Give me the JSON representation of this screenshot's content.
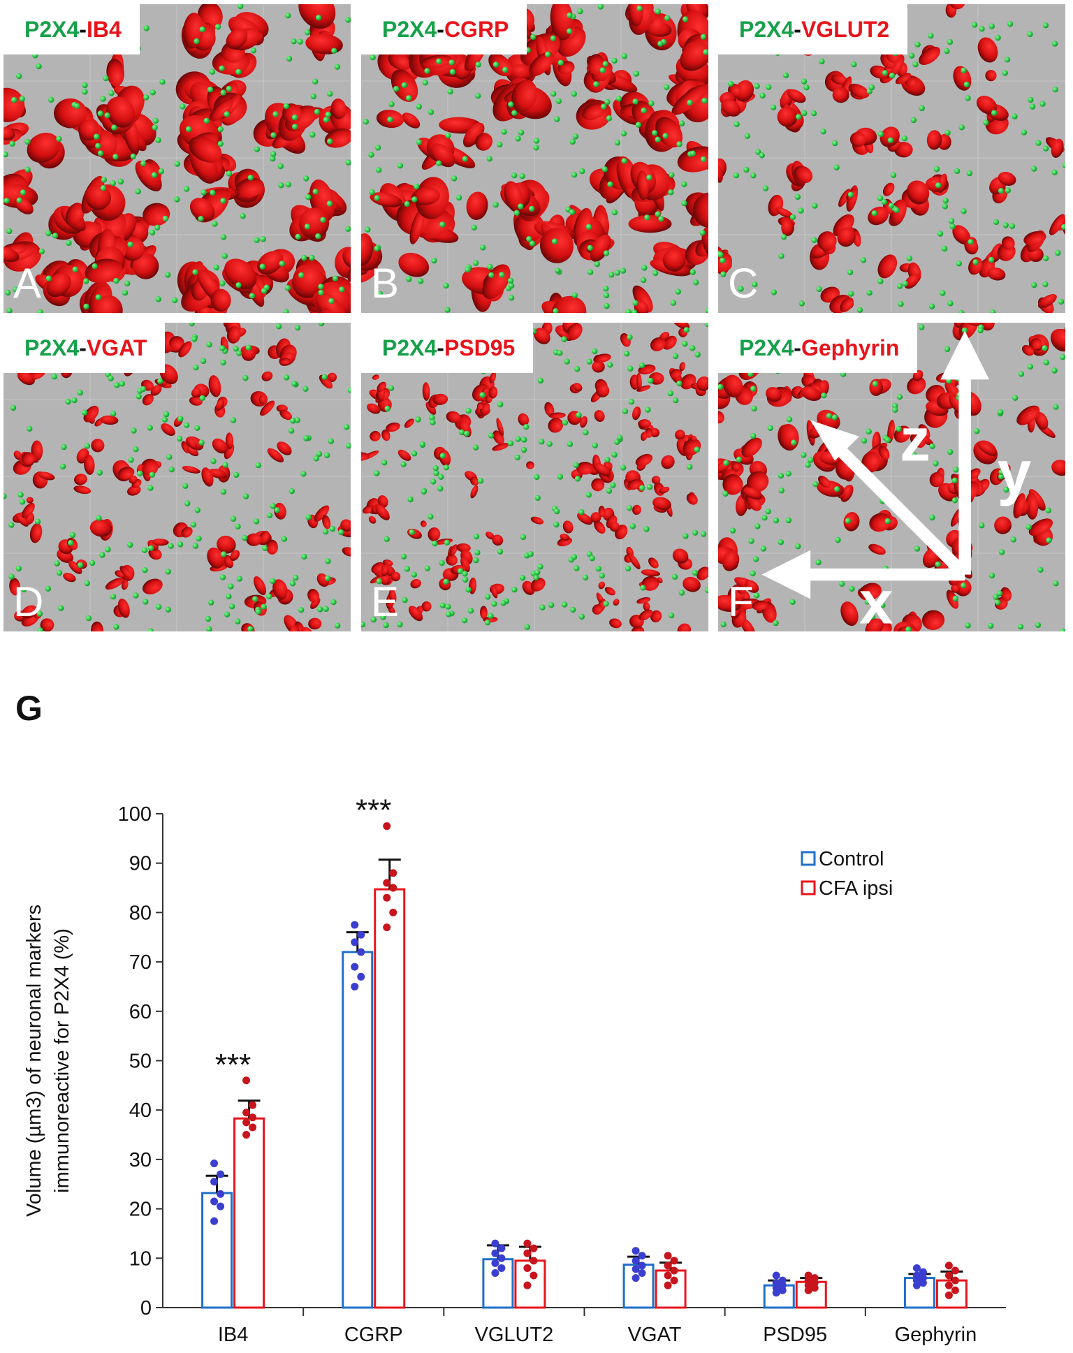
{
  "panels": [
    {
      "letter": "A",
      "marker_green": "P2X4",
      "dash": "-",
      "marker_red": "IB4"
    },
    {
      "letter": "B",
      "marker_green": "P2X4",
      "dash": "-",
      "marker_red": "CGRP"
    },
    {
      "letter": "C",
      "marker_green": "P2X4",
      "dash": "-",
      "marker_red": "VGLUT2"
    },
    {
      "letter": "D",
      "marker_green": "P2X4",
      "dash": "-",
      "marker_red": "VGAT"
    },
    {
      "letter": "E",
      "marker_green": "P2X4",
      "dash": "-",
      "marker_red": "PSD95"
    },
    {
      "letter": "F",
      "marker_green": "P2X4",
      "dash": "-",
      "marker_red": "Gephyrin"
    }
  ],
  "axis_indicator": {
    "x": "x",
    "y": "y",
    "z": "z"
  },
  "colors": {
    "green": "#16a04a",
    "red": "#e8141b",
    "control": "#1f6fc9",
    "cfa": "#e8141b",
    "control_dots": "#3b3fd0",
    "cfa_dots": "#c8141c",
    "panel_bg": "#b4b4b4"
  },
  "chart_data": {
    "panel_label": "G",
    "type": "bar",
    "categories": [
      "IB4",
      "CGRP",
      "VGLUT2",
      "VGAT",
      "PSD95",
      "Gephyrin"
    ],
    "ylabel_line1": "Volume (µm3) of neuronal markers",
    "ylabel_line2": "immunoreactive for P2X4 (%)",
    "ylim": [
      0,
      100
    ],
    "yticks": [
      0,
      10,
      20,
      30,
      40,
      50,
      60,
      70,
      80,
      90,
      100
    ],
    "legend_position": "top-right",
    "series": [
      {
        "name": "Control",
        "values": [
          23.2,
          72.0,
          9.8,
          8.7,
          4.5,
          6.0
        ],
        "errors": [
          3.5,
          4.0,
          2.8,
          1.6,
          1.0,
          0.8
        ],
        "points": [
          [
            29.2,
            27.0,
            25.5,
            23.0,
            21.5,
            20.5,
            17.5
          ],
          [
            77.5,
            75.5,
            74.0,
            72.0,
            69.0,
            67.0,
            65.0
          ],
          [
            13.0,
            12.0,
            11.0,
            10.0,
            9.0,
            8.0,
            7.0
          ],
          [
            11.5,
            10.5,
            9.5,
            8.5,
            7.8,
            7.0,
            6.0
          ],
          [
            6.5,
            5.5,
            5.0,
            4.5,
            4.0,
            3.5,
            3.0
          ],
          [
            8.0,
            7.2,
            6.5,
            6.0,
            5.5,
            5.0,
            4.5
          ]
        ]
      },
      {
        "name": "CFA ipsi",
        "values": [
          38.3,
          84.7,
          9.5,
          7.5,
          5.2,
          5.5
        ],
        "errors": [
          3.6,
          6.0,
          2.8,
          1.6,
          0.8,
          1.8
        ],
        "points": [
          [
            46.0,
            41.0,
            39.5,
            38.5,
            37.5,
            36.5,
            35.0
          ],
          [
            97.5,
            88.0,
            86.0,
            85.0,
            83.0,
            80.0,
            77.0
          ],
          [
            13.0,
            12.0,
            11.0,
            9.5,
            8.0,
            6.5,
            4.5
          ],
          [
            10.5,
            9.5,
            8.5,
            7.5,
            6.5,
            5.5,
            4.5
          ],
          [
            6.5,
            6.0,
            5.5,
            5.0,
            4.5,
            4.0,
            3.5
          ],
          [
            8.5,
            7.5,
            6.5,
            5.5,
            4.5,
            3.5,
            2.5
          ]
        ]
      }
    ],
    "annotations": [
      {
        "category": "IB4",
        "text": "***"
      },
      {
        "category": "CGRP",
        "text": "***"
      }
    ]
  }
}
